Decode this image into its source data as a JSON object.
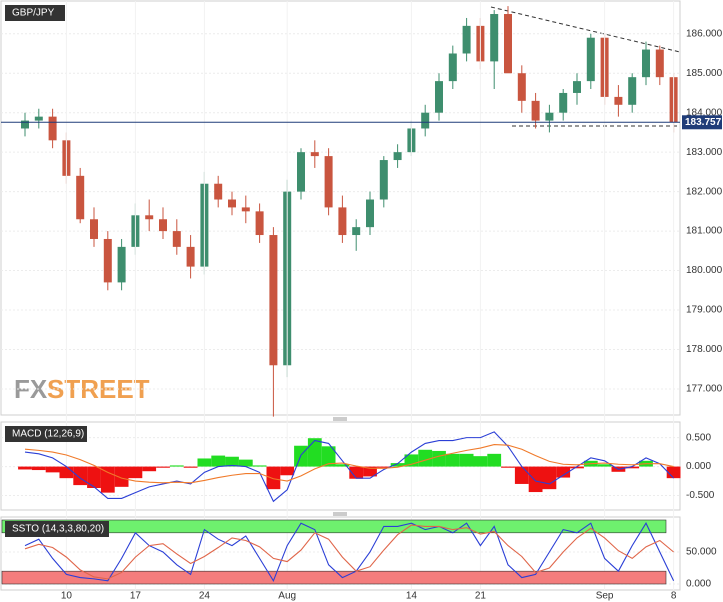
{
  "chart_data": [
    {
      "type": "candlestick",
      "title": "GBP/JPY",
      "watermark": [
        "FX",
        "STREET"
      ],
      "categories": [
        null,
        null,
        null,
        "10",
        null,
        null,
        null,
        null,
        "17",
        null,
        null,
        null,
        null,
        "24",
        null,
        null,
        null,
        null,
        null,
        "Aug",
        null,
        null,
        null,
        null,
        null,
        null,
        null,
        null,
        "14",
        null,
        null,
        null,
        null,
        "21",
        null,
        null,
        null,
        null,
        null,
        null,
        null,
        null,
        "Sep",
        null,
        null,
        null,
        null,
        "8"
      ],
      "open": [
        183.6,
        183.8,
        183.9,
        183.3,
        182.4,
        181.3,
        180.8,
        179.7,
        180.6,
        181.4,
        181.3,
        181.0,
        180.6,
        180.1,
        182.2,
        181.8,
        181.6,
        181.5,
        180.9,
        177.6,
        182.0,
        183.0,
        182.9,
        181.6,
        180.9,
        181.1,
        181.8,
        182.8,
        183.0,
        183.6,
        184.0,
        184.8,
        185.5,
        186.2,
        185.3,
        186.5,
        185.0,
        184.3,
        183.8,
        184.0,
        184.5,
        184.8,
        185.9,
        184.4,
        184.2,
        184.9,
        185.6,
        184.9
      ],
      "high": [
        184.0,
        184.1,
        184.1,
        183.5,
        182.6,
        181.6,
        181.0,
        180.8,
        181.7,
        181.8,
        181.6,
        181.3,
        180.9,
        182.5,
        182.4,
        182.0,
        181.9,
        181.7,
        181.1,
        182.3,
        183.1,
        183.3,
        183.1,
        181.9,
        181.3,
        182.0,
        182.9,
        183.2,
        183.8,
        184.2,
        185.0,
        185.7,
        186.4,
        186.4,
        186.6,
        186.7,
        185.2,
        184.5,
        184.2,
        184.6,
        185.0,
        186.0,
        186.0,
        184.7,
        185.0,
        185.8,
        185.7,
        185.0
      ],
      "low": [
        183.4,
        183.6,
        183.1,
        182.2,
        181.2,
        180.6,
        179.5,
        179.5,
        180.4,
        181.0,
        180.8,
        180.4,
        179.8,
        179.9,
        181.6,
        181.4,
        181.2,
        180.7,
        176.3,
        177.3,
        181.8,
        182.6,
        181.4,
        180.7,
        180.5,
        180.9,
        181.6,
        182.6,
        182.9,
        183.4,
        183.8,
        184.6,
        185.3,
        185.1,
        184.6,
        185.0,
        184.0,
        183.6,
        183.5,
        183.8,
        184.2,
        184.6,
        184.2,
        183.9,
        184.0,
        184.7,
        184.7,
        183.5
      ],
      "close": [
        183.8,
        183.9,
        183.3,
        182.4,
        181.3,
        180.8,
        179.7,
        180.6,
        181.4,
        181.3,
        181.0,
        180.6,
        180.1,
        182.2,
        181.8,
        181.6,
        181.5,
        180.9,
        177.6,
        182.0,
        183.0,
        182.9,
        181.6,
        180.9,
        181.1,
        181.8,
        182.8,
        183.0,
        183.6,
        184.0,
        184.8,
        185.5,
        186.2,
        185.3,
        186.5,
        185.0,
        184.3,
        183.8,
        184.0,
        184.5,
        184.8,
        185.9,
        184.4,
        184.2,
        184.9,
        185.6,
        184.9,
        183.757
      ],
      "up_color": "#3e8e6e",
      "down_color": "#c9553f",
      "last_price": 183.757,
      "last_color": "#1f3c78",
      "ylim": [
        176.34,
        186.83
      ],
      "yticks": [
        {
          "value": 177,
          "label": "177.000"
        },
        {
          "value": 178,
          "label": "178.000"
        },
        {
          "value": 179,
          "label": "179.000"
        },
        {
          "value": 180,
          "label": "180.000"
        },
        {
          "value": 181,
          "label": "181.000"
        },
        {
          "value": 182,
          "label": "182.000"
        },
        {
          "value": 183,
          "label": "183.000"
        },
        {
          "value": 184,
          "label": "184.000"
        },
        {
          "value": 185,
          "label": "185.000"
        },
        {
          "value": 186,
          "label": "186.000"
        }
      ],
      "grid": true
    },
    {
      "type": "macd",
      "title": "MACD (12,26,9)",
      "series": [
        {
          "color": "#2b3fd6",
          "values": [
            0.25,
            0.22,
            0.15,
            0.0,
            -0.2,
            -0.35,
            -0.55,
            -0.55,
            -0.45,
            -0.35,
            -0.3,
            -0.25,
            -0.3,
            -0.1,
            0.0,
            0.02,
            0.0,
            -0.1,
            -0.6,
            -0.4,
            0.2,
            0.45,
            0.4,
            0.1,
            -0.2,
            -0.2,
            -0.05,
            0.05,
            0.25,
            0.4,
            0.45,
            0.45,
            0.5,
            0.5,
            0.6,
            0.35,
            0.0,
            -0.25,
            -0.3,
            -0.15,
            0.0,
            0.15,
            0.1,
            -0.05,
            0.0,
            0.15,
            0.05,
            -0.2
          ]
        },
        {
          "color": "#f07a2a",
          "values": [
            0.3,
            0.28,
            0.25,
            0.2,
            0.12,
            0.02,
            -0.1,
            -0.2,
            -0.25,
            -0.27,
            -0.28,
            -0.27,
            -0.28,
            -0.24,
            -0.19,
            -0.15,
            -0.12,
            -0.12,
            -0.21,
            -0.25,
            -0.16,
            -0.04,
            0.05,
            0.06,
            0.01,
            -0.03,
            -0.03,
            -0.01,
            0.04,
            0.11,
            0.18,
            0.23,
            0.28,
            0.32,
            0.38,
            0.37,
            0.3,
            0.19,
            0.09,
            0.04,
            0.03,
            0.05,
            0.06,
            0.04,
            0.03,
            0.05,
            0.05,
            0.0
          ]
        }
      ],
      "histogram": [
        -0.05,
        -0.06,
        -0.1,
        -0.2,
        -0.32,
        -0.37,
        -0.45,
        -0.35,
        -0.2,
        -0.08,
        -0.02,
        0.02,
        -0.02,
        0.14,
        0.19,
        0.17,
        0.12,
        0.02,
        -0.39,
        -0.15,
        0.36,
        0.49,
        0.35,
        0.04,
        -0.21,
        -0.17,
        -0.02,
        0.06,
        0.21,
        0.29,
        0.27,
        0.22,
        0.22,
        0.18,
        0.22,
        -0.02,
        -0.3,
        -0.44,
        -0.39,
        -0.19,
        -0.03,
        0.1,
        0.04,
        -0.09,
        -0.03,
        0.1,
        0.0,
        -0.2
      ],
      "up_color": "#22dd22",
      "down_color": "#ee1111",
      "ylim": [
        -0.75,
        0.77
      ],
      "yticks": [
        {
          "value": 0.5,
          "label": "0.500"
        },
        {
          "value": 0,
          "label": "0.000"
        },
        {
          "value": -0.5,
          "label": "-0.500"
        }
      ]
    },
    {
      "type": "stochastic",
      "title": "SSTO (14,3,3,80,20)",
      "series": [
        {
          "color": "#2b3fd6",
          "values": [
            60,
            70,
            40,
            15,
            10,
            8,
            5,
            40,
            80,
            60,
            50,
            30,
            15,
            85,
            70,
            60,
            75,
            40,
            5,
            60,
            95,
            85,
            30,
            10,
            20,
            50,
            90,
            90,
            95,
            85,
            90,
            80,
            95,
            60,
            90,
            30,
            10,
            15,
            50,
            85,
            80,
            95,
            40,
            20,
            60,
            95,
            50,
            5
          ]
        },
        {
          "color": "#e0664a",
          "values": [
            55,
            62,
            57,
            42,
            22,
            11,
            8,
            18,
            42,
            60,
            63,
            47,
            32,
            43,
            57,
            72,
            68,
            58,
            40,
            35,
            53,
            80,
            70,
            42,
            20,
            27,
            53,
            77,
            92,
            90,
            90,
            85,
            88,
            78,
            82,
            60,
            43,
            18,
            25,
            50,
            72,
            87,
            72,
            52,
            40,
            58,
            68,
            50
          ]
        }
      ],
      "zones": [
        {
          "range": [
            80,
            100
          ],
          "color": "#6ef06e"
        },
        {
          "range": [
            0,
            20
          ],
          "color": "#f47d7d"
        }
      ],
      "ylim": [
        -9.4,
        104.7
      ],
      "yticks": [
        {
          "value": 50,
          "label": "50.000"
        },
        {
          "value": 0,
          "label": "0.000"
        }
      ]
    }
  ]
}
